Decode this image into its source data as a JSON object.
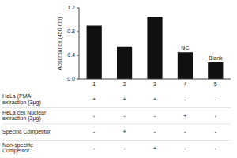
{
  "chart_data": {
    "type": "bar",
    "categories": [
      "1",
      "2",
      "3",
      "4",
      "5"
    ],
    "values": [
      0.9,
      0.55,
      1.05,
      0.45,
      0.28
    ],
    "color": "#111111",
    "y_label": "Absorbance (450 nm)",
    "ylim": [
      0.0,
      1.2
    ],
    "yticks": [
      {
        "value": 0.0,
        "label": "0.0"
      },
      0.4,
      0.8,
      1.2
    ],
    "annotations": [
      {
        "text": "NC",
        "category": "4"
      },
      {
        "text": "Blank",
        "category": "5"
      }
    ],
    "table_rows": [
      {
        "label": "HeLa (PMA\nextraction (3μg)",
        "values": [
          "+",
          "+",
          "+",
          "-",
          "-"
        ]
      },
      {
        "label": "HeLa cell Nuclear\nextraction (3μg)",
        "values": [
          "-",
          "-",
          "-",
          "+",
          "-"
        ]
      },
      {
        "label": "Specific Competitor",
        "values": [
          "-",
          "+",
          "-",
          "-",
          "-"
        ]
      },
      {
        "label": "Non-specific\nCompetitor",
        "values": [
          "-",
          "-",
          "+",
          "-",
          "-"
        ]
      }
    ]
  }
}
